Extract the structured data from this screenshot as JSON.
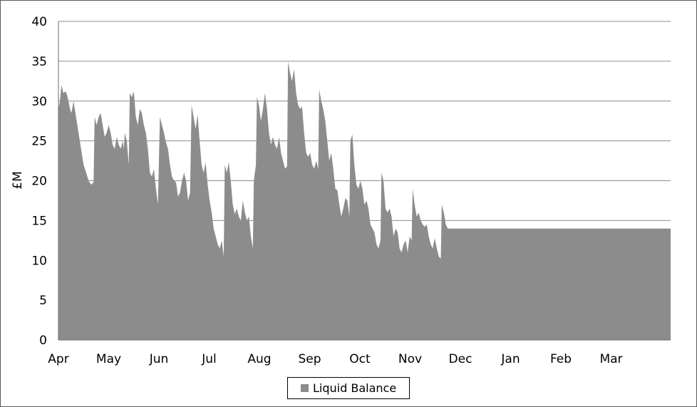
{
  "chart_data": {
    "type": "area",
    "title": "",
    "ylabel": "£M",
    "xlabel": "",
    "ylim": [
      0,
      40
    ],
    "yticks": [
      0,
      5,
      10,
      15,
      20,
      25,
      30,
      35,
      40
    ],
    "grid": "horizontal",
    "legend_position": "bottom-center",
    "month_labels": [
      "Apr",
      "May",
      "Jun",
      "Jul",
      "Aug",
      "Sep",
      "Oct",
      "Nov",
      "Dec",
      "Jan",
      "Feb",
      "Mar"
    ],
    "series": [
      {
        "name": "Liquid Balance",
        "color": "#8c8c8c",
        "points": [
          [
            0,
            29
          ],
          [
            0.03,
            30
          ],
          [
            0.06,
            32
          ],
          [
            0.1,
            31
          ],
          [
            0.13,
            31.2
          ],
          [
            0.16,
            31
          ],
          [
            0.2,
            30
          ],
          [
            0.23,
            29
          ],
          [
            0.26,
            28.5
          ],
          [
            0.3,
            30
          ],
          [
            0.35,
            28
          ],
          [
            0.4,
            26
          ],
          [
            0.45,
            24
          ],
          [
            0.5,
            22
          ],
          [
            0.55,
            21
          ],
          [
            0.6,
            20
          ],
          [
            0.65,
            19.5
          ],
          [
            0.7,
            19.8
          ],
          [
            0.72,
            28
          ],
          [
            0.76,
            27
          ],
          [
            0.8,
            28
          ],
          [
            0.84,
            28.5
          ],
          [
            0.88,
            27
          ],
          [
            0.92,
            25.5
          ],
          [
            0.96,
            26
          ],
          [
            1.0,
            27
          ],
          [
            1.04,
            26
          ],
          [
            1.08,
            24.5
          ],
          [
            1.12,
            24
          ],
          [
            1.16,
            25.5
          ],
          [
            1.2,
            24.5
          ],
          [
            1.24,
            24
          ],
          [
            1.28,
            25
          ],
          [
            1.3,
            24
          ],
          [
            1.32,
            26
          ],
          [
            1.36,
            25
          ],
          [
            1.4,
            22
          ],
          [
            1.42,
            31
          ],
          [
            1.46,
            30.5
          ],
          [
            1.5,
            31.2
          ],
          [
            1.54,
            28
          ],
          [
            1.58,
            27
          ],
          [
            1.62,
            29
          ],
          [
            1.66,
            28.5
          ],
          [
            1.7,
            27
          ],
          [
            1.74,
            26
          ],
          [
            1.78,
            24
          ],
          [
            1.82,
            21
          ],
          [
            1.86,
            20.5
          ],
          [
            1.9,
            21.5
          ],
          [
            1.94,
            19
          ],
          [
            1.98,
            17
          ],
          [
            2.02,
            28
          ],
          [
            2.06,
            27
          ],
          [
            2.1,
            26
          ],
          [
            2.14,
            24.8
          ],
          [
            2.18,
            24
          ],
          [
            2.22,
            22
          ],
          [
            2.26,
            20.5
          ],
          [
            2.3,
            20
          ],
          [
            2.34,
            19.8
          ],
          [
            2.38,
            18
          ],
          [
            2.42,
            18.5
          ],
          [
            2.46,
            20
          ],
          [
            2.5,
            21
          ],
          [
            2.54,
            20
          ],
          [
            2.58,
            17.5
          ],
          [
            2.62,
            18.5
          ],
          [
            2.65,
            29.5
          ],
          [
            2.69,
            28
          ],
          [
            2.73,
            26.5
          ],
          [
            2.77,
            28.3
          ],
          [
            2.81,
            25
          ],
          [
            2.85,
            22
          ],
          [
            2.89,
            21
          ],
          [
            2.93,
            22.3
          ],
          [
            2.97,
            19.5
          ],
          [
            3.01,
            17.5
          ],
          [
            3.05,
            16
          ],
          [
            3.09,
            14
          ],
          [
            3.13,
            13
          ],
          [
            3.17,
            12
          ],
          [
            3.21,
            11.5
          ],
          [
            3.25,
            12.5
          ],
          [
            3.29,
            10.5
          ],
          [
            3.31,
            22
          ],
          [
            3.35,
            21
          ],
          [
            3.39,
            22.3
          ],
          [
            3.43,
            20
          ],
          [
            3.47,
            17
          ],
          [
            3.51,
            15.8
          ],
          [
            3.55,
            16.5
          ],
          [
            3.59,
            15.5
          ],
          [
            3.63,
            15
          ],
          [
            3.67,
            17.5
          ],
          [
            3.71,
            16
          ],
          [
            3.75,
            15
          ],
          [
            3.79,
            15.5
          ],
          [
            3.83,
            13
          ],
          [
            3.87,
            11.5
          ],
          [
            3.89,
            20
          ],
          [
            3.93,
            22
          ],
          [
            3.95,
            30.5
          ],
          [
            3.99,
            29.5
          ],
          [
            4.03,
            27.5
          ],
          [
            4.07,
            29
          ],
          [
            4.11,
            31
          ],
          [
            4.15,
            29
          ],
          [
            4.19,
            26
          ],
          [
            4.23,
            24.5
          ],
          [
            4.27,
            25.5
          ],
          [
            4.31,
            24.5
          ],
          [
            4.35,
            24
          ],
          [
            4.39,
            25.5
          ],
          [
            4.43,
            23.5
          ],
          [
            4.47,
            22.5
          ],
          [
            4.51,
            21.5
          ],
          [
            4.55,
            21.8
          ],
          [
            4.57,
            35
          ],
          [
            4.61,
            33.5
          ],
          [
            4.65,
            32.5
          ],
          [
            4.69,
            34
          ],
          [
            4.73,
            31
          ],
          [
            4.77,
            29.5
          ],
          [
            4.81,
            29
          ],
          [
            4.85,
            29.3
          ],
          [
            4.89,
            26
          ],
          [
            4.93,
            23.5
          ],
          [
            4.97,
            23
          ],
          [
            5.01,
            23.5
          ],
          [
            5.05,
            22
          ],
          [
            5.09,
            21.5
          ],
          [
            5.13,
            22.5
          ],
          [
            5.17,
            21.5
          ],
          [
            5.19,
            31.5
          ],
          [
            5.23,
            30
          ],
          [
            5.27,
            29
          ],
          [
            5.31,
            27.5
          ],
          [
            5.35,
            25
          ],
          [
            5.39,
            22.5
          ],
          [
            5.43,
            23.5
          ],
          [
            5.47,
            21.5
          ],
          [
            5.51,
            19
          ],
          [
            5.55,
            18.8
          ],
          [
            5.59,
            17
          ],
          [
            5.63,
            15.5
          ],
          [
            5.67,
            16.5
          ],
          [
            5.71,
            17.8
          ],
          [
            5.75,
            17.5
          ],
          [
            5.79,
            15.5
          ],
          [
            5.81,
            25
          ],
          [
            5.85,
            25.8
          ],
          [
            5.89,
            22
          ],
          [
            5.93,
            19.5
          ],
          [
            5.97,
            19
          ],
          [
            6.01,
            20
          ],
          [
            6.05,
            19
          ],
          [
            6.09,
            17
          ],
          [
            6.13,
            17.5
          ],
          [
            6.17,
            16.5
          ],
          [
            6.21,
            14.5
          ],
          [
            6.25,
            14
          ],
          [
            6.29,
            13.5
          ],
          [
            6.33,
            12
          ],
          [
            6.37,
            11.5
          ],
          [
            6.41,
            12.5
          ],
          [
            6.43,
            21
          ],
          [
            6.47,
            20
          ],
          [
            6.51,
            16.5
          ],
          [
            6.55,
            16
          ],
          [
            6.59,
            16.5
          ],
          [
            6.63,
            15.5
          ],
          [
            6.67,
            13
          ],
          [
            6.71,
            14
          ],
          [
            6.75,
            13.5
          ],
          [
            6.79,
            11.5
          ],
          [
            6.83,
            11
          ],
          [
            6.87,
            12
          ],
          [
            6.91,
            12.5
          ],
          [
            6.95,
            11
          ],
          [
            6.99,
            13
          ],
          [
            7.03,
            12.5
          ],
          [
            7.05,
            19
          ],
          [
            7.09,
            17
          ],
          [
            7.13,
            15.5
          ],
          [
            7.17,
            16
          ],
          [
            7.21,
            15
          ],
          [
            7.25,
            14.5
          ],
          [
            7.29,
            14.2
          ],
          [
            7.33,
            14.5
          ],
          [
            7.37,
            13
          ],
          [
            7.41,
            12
          ],
          [
            7.45,
            11.5
          ],
          [
            7.49,
            12.8
          ],
          [
            7.53,
            11.5
          ],
          [
            7.57,
            10.5
          ],
          [
            7.61,
            10.2
          ],
          [
            7.63,
            17
          ],
          [
            7.67,
            16
          ],
          [
            7.71,
            14.5
          ],
          [
            7.75,
            14
          ],
          [
            7.77,
            14
          ]
        ]
      }
    ]
  }
}
